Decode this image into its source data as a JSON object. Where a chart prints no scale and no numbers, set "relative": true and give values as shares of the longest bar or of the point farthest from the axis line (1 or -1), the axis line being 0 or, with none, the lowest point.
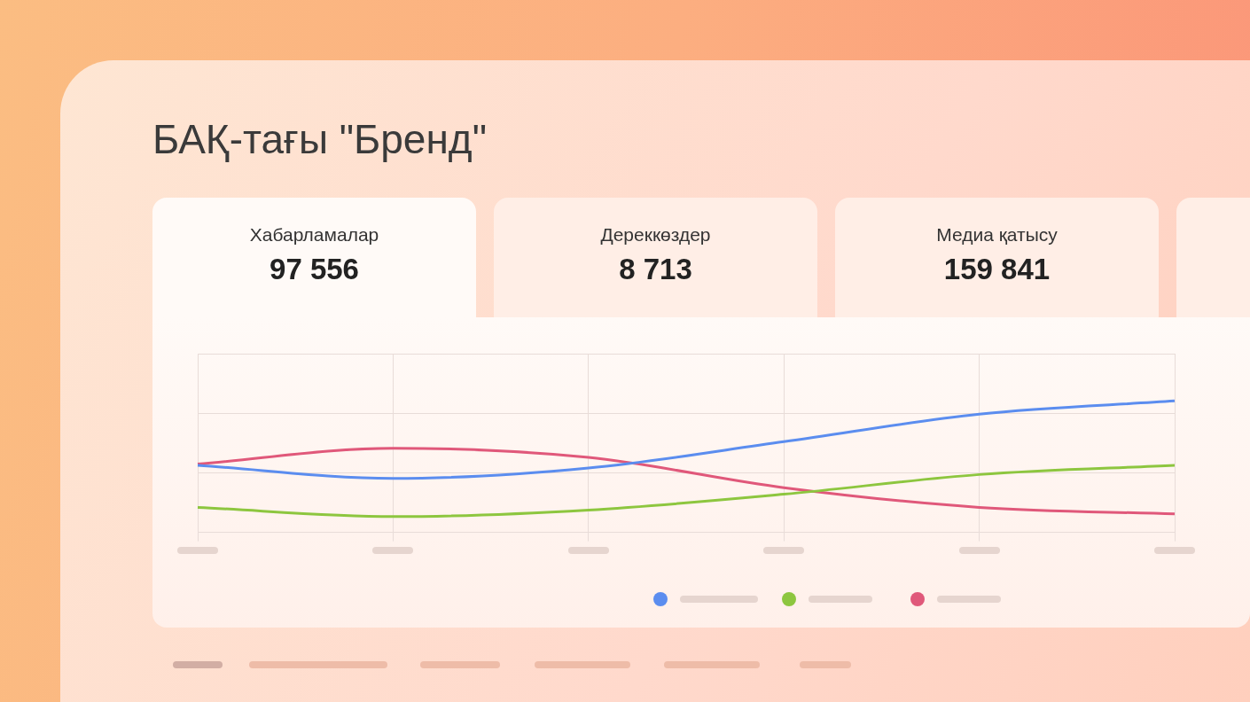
{
  "chart_data": [
    {
      "type": "other",
      "title": "БАҚ-тағы \"Бренд\"",
      "categories": [
        "Хабарламалар",
        "Дереккөздер",
        "Медиа қатысу"
      ],
      "value_labels": [
        "97 556",
        "8 713",
        "159 841"
      ]
    },
    {
      "type": "line",
      "relative": true,
      "categories": [
        null,
        null,
        null,
        null,
        null,
        null
      ],
      "series": [
        {
          "color": "#5b8def",
          "values": [
            0.51,
            0.41,
            0.49,
            0.69,
            0.9,
            1
          ]
        },
        {
          "color": "#8dc63f",
          "values": [
            0.19,
            0.12,
            0.17,
            0.29,
            0.44,
            0.51
          ]
        },
        {
          "color": "#e0587a",
          "values": [
            0.52,
            0.64,
            0.57,
            0.34,
            0.19,
            0.14
          ]
        }
      ],
      "grid": true,
      "marker": "none",
      "line_style": "solid"
    }
  ]
}
